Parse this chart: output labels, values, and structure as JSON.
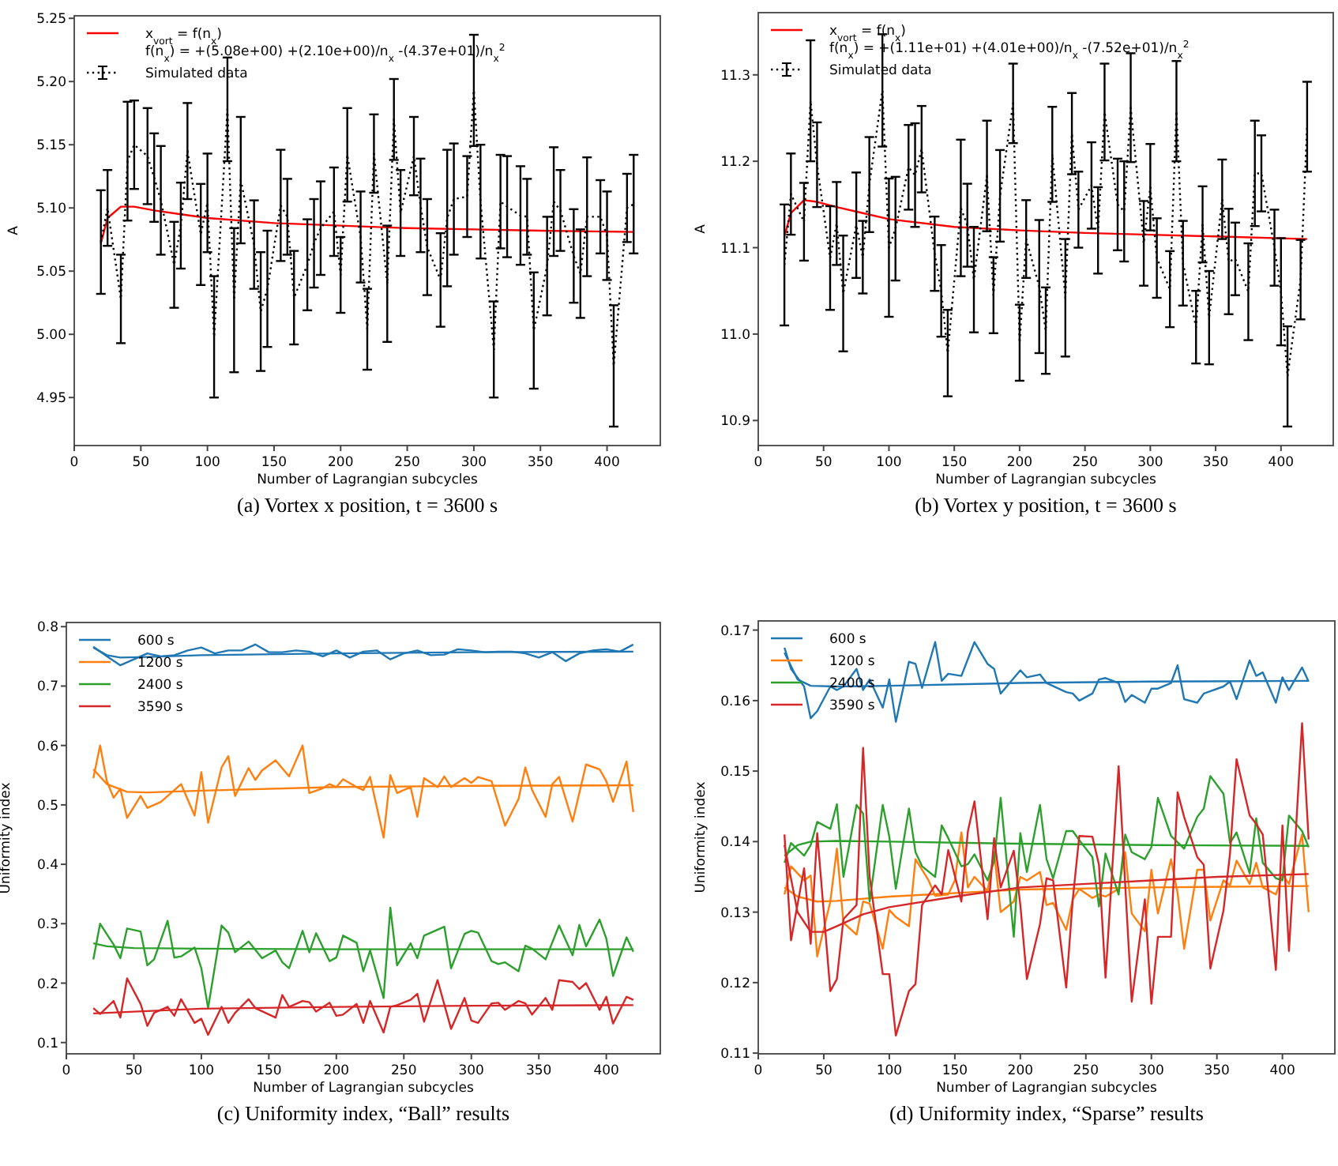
{
  "chart_data": [
    {
      "type": "line",
      "xlabel": "Number of Lagrangian subcycles",
      "ylabel": "A",
      "xlim": [
        0,
        440
      ],
      "ylim": [
        4.912,
        5.252
      ],
      "xticks": [
        0,
        50,
        100,
        150,
        200,
        250,
        300,
        350,
        400
      ],
      "yticks": [
        4.95,
        {
          "value": 5,
          "label": "5.00"
        },
        5.05,
        {
          "value": 5.1,
          "label": "5.10"
        },
        5.15,
        {
          "value": 5.2,
          "label": "5.20"
        },
        5.25
      ],
      "legend": "top left",
      "annotations": [
        "(a) Vortex x position, t = 3600 s"
      ],
      "series": [
        {
          "name": "x$_{vort}$ = f(n$_{x}$)\nf(n$_{x}$) = +(5.08e+00) +(2.10e+00)/n$_{x}$ -(4.37e+01)/n$_{x}$$^{2}$",
          "color": "#ff0000",
          "x": [
            20,
            25,
            35,
            45,
            60,
            80,
            100,
            150,
            200,
            250,
            300,
            350,
            420
          ],
          "values": [
            5.072,
            5.092,
            5.101,
            5.101,
            5.098,
            5.095,
            5.092,
            5.088,
            5.086,
            5.084,
            5.083,
            5.082,
            5.081
          ]
        },
        {
          "name": "Simulated data",
          "color": "#000000",
          "line_style": "dotted",
          "x": [
            20,
            25,
            35,
            40,
            45,
            55,
            60,
            65,
            75,
            80,
            85,
            95,
            100,
            105,
            115,
            120,
            125,
            135,
            140,
            145,
            155,
            160,
            165,
            175,
            180,
            185,
            195,
            200,
            205,
            215,
            220,
            225,
            235,
            240,
            245,
            255,
            260,
            265,
            275,
            280,
            285,
            295,
            300,
            305,
            315,
            320,
            325,
            335,
            340,
            345,
            355,
            360,
            365,
            375,
            380,
            385,
            395,
            400,
            405,
            415,
            420
          ],
          "values": [
            5.073,
            5.1,
            5.028,
            5.137,
            5.15,
            5.141,
            5.124,
            5.106,
            5.055,
            5.086,
            5.145,
            5.079,
            5.104,
            4.998,
            5.178,
            5.027,
            5.122,
            5.071,
            5.018,
            5.036,
            5.102,
            5.093,
            5.029,
            5.055,
            5.072,
            5.084,
            5.097,
            5.047,
            5.142,
            5.077,
            5.004,
            5.143,
            5.04,
            5.17,
            5.096,
            5.141,
            5.102,
            5.069,
            5.043,
            5.092,
            5.107,
            5.109,
            5.193,
            5.105,
            4.988,
            5.105,
            5.101,
            5.094,
            5.093,
            5.003,
            5.054,
            5.105,
            5.098,
            5.062,
            5.048,
            5.093,
            5.093,
            5.078,
            4.975,
            5.1,
            5.103
          ],
          "errors": [
            0.041,
            0.03,
            0.035,
            0.047,
            0.035,
            0.038,
            0.035,
            0.043,
            0.034,
            0.034,
            0.038,
            0.04,
            0.039,
            0.048,
            0.041,
            0.057,
            0.05,
            0.035,
            0.047,
            0.046,
            0.044,
            0.03,
            0.037,
            0.036,
            0.035,
            0.037,
            0.035,
            0.03,
            0.037,
            0.036,
            0.032,
            0.031,
            0.046,
            0.032,
            0.034,
            0.031,
            0.037,
            0.038,
            0.037,
            0.054,
            0.044,
            0.032,
            0.044,
            0.045,
            0.038,
            0.037,
            0.04,
            0.039,
            0.03,
            0.046,
            0.039,
            0.043,
            0.032,
            0.037,
            0.035,
            0.047,
            0.029,
            0.035,
            0.048,
            0.027,
            0.039
          ]
        }
      ]
    },
    {
      "type": "line",
      "xlabel": "Number of Lagrangian subcycles",
      "ylabel": "A",
      "xlim": [
        0,
        440
      ],
      "ylim": [
        10.871,
        11.372
      ],
      "xticks": [
        0,
        50,
        100,
        150,
        200,
        250,
        300,
        350,
        400
      ],
      "yticks": [
        10.9,
        {
          "value": 11,
          "label": "11.0"
        },
        11.1,
        11.2,
        11.3
      ],
      "legend": "top left",
      "annotations": [
        "(b) Vortex y position, t = 3600 s"
      ],
      "series": [
        {
          "name": "x$_{vort}$ = f(n$_{x}$)\nf(n$_{x}$) = +(1.11e+01) +(4.01e+00)/n$_{x}$ -(7.52e+01)/n$_{x}$$^{2}$",
          "color": "#ff0000",
          "x": [
            20,
            25,
            35,
            45,
            60,
            80,
            100,
            150,
            200,
            250,
            300,
            350,
            420
          ],
          "values": [
            11.113,
            11.14,
            11.155,
            11.153,
            11.147,
            11.14,
            11.133,
            11.124,
            11.12,
            11.117,
            11.115,
            11.113,
            11.11
          ]
        },
        {
          "name": "Simulated data",
          "color": "#000000",
          "line_style": "dotted",
          "x": [
            20,
            25,
            35,
            40,
            45,
            55,
            60,
            65,
            75,
            80,
            85,
            95,
            100,
            105,
            115,
            120,
            125,
            135,
            140,
            145,
            155,
            160,
            165,
            175,
            180,
            185,
            195,
            200,
            205,
            215,
            220,
            225,
            235,
            240,
            245,
            255,
            260,
            265,
            275,
            280,
            285,
            295,
            300,
            305,
            315,
            320,
            325,
            335,
            340,
            345,
            355,
            360,
            365,
            375,
            380,
            385,
            395,
            400,
            405,
            415,
            420
          ],
          "values": [
            11.08,
            11.162,
            11.13,
            11.27,
            11.196,
            11.088,
            11.128,
            11.047,
            11.126,
            11.089,
            11.173,
            11.282,
            11.1,
            11.122,
            11.193,
            11.184,
            11.214,
            11.093,
            11.05,
            10.978,
            11.146,
            11.126,
            11.063,
            11.183,
            11.045,
            11.16,
            11.267,
            10.99,
            11.11,
            11.055,
            11.004,
            11.208,
            11.042,
            11.232,
            11.144,
            11.172,
            11.12,
            11.257,
            11.15,
            11.142,
            11.262,
            11.105,
            11.17,
            11.088,
            11.052,
            11.258,
            11.082,
            11.008,
            11.127,
            11.019,
            11.156,
            11.084,
            11.087,
            11.049,
            11.186,
            11.186,
            11.1,
            11.049,
            10.951,
            11.063,
            11.24
          ],
          "errors": [
            0.07,
            0.047,
            0.045,
            0.07,
            0.049,
            0.06,
            0.048,
            0.067,
            0.061,
            0.042,
            0.055,
            0.065,
            0.08,
            0.06,
            0.049,
            0.06,
            0.05,
            0.043,
            0.053,
            0.05,
            0.079,
            0.048,
            0.061,
            0.064,
            0.044,
            0.053,
            0.046,
            0.044,
            0.045,
            0.077,
            0.05,
            0.055,
            0.068,
            0.047,
            0.044,
            0.05,
            0.05,
            0.056,
            0.053,
            0.058,
            0.063,
            0.049,
            0.05,
            0.046,
            0.044,
            0.058,
            0.049,
            0.042,
            0.044,
            0.054,
            0.046,
            0.061,
            0.042,
            0.056,
            0.061,
            0.044,
            0.044,
            0.062,
            0.058,
            0.046,
            0.052
          ]
        }
      ]
    },
    {
      "type": "line",
      "xlabel": "Number of Lagrangian subcycles",
      "ylabel": "Uniformity index",
      "xlim": [
        0,
        440
      ],
      "ylim": [
        0.081,
        0.807
      ],
      "xticks": [
        0,
        50,
        100,
        150,
        200,
        250,
        300,
        350,
        400
      ],
      "yticks": [
        0.1,
        0.2,
        0.3,
        0.4,
        0.5,
        0.6,
        0.7,
        0.8
      ],
      "legend": "top left",
      "annotations": [
        "(c) Uniformity index, “Ball” results"
      ],
      "series": [
        {
          "name": "600 s",
          "color": "#1f77b4",
          "x": [
            20,
            30,
            40,
            50,
            60,
            70,
            80,
            90,
            100,
            110,
            120,
            130,
            140,
            150,
            160,
            170,
            180,
            190,
            200,
            210,
            220,
            230,
            240,
            250,
            260,
            270,
            280,
            290,
            300,
            310,
            320,
            330,
            340,
            350,
            360,
            370,
            380,
            390,
            400,
            410,
            420
          ],
          "values": [
            0.766,
            0.75,
            0.735,
            0.745,
            0.755,
            0.75,
            0.752,
            0.76,
            0.765,
            0.755,
            0.76,
            0.76,
            0.77,
            0.757,
            0.757,
            0.76,
            0.758,
            0.75,
            0.76,
            0.748,
            0.758,
            0.76,
            0.745,
            0.755,
            0.76,
            0.752,
            0.753,
            0.762,
            0.76,
            0.757,
            0.758,
            0.758,
            0.755,
            0.748,
            0.757,
            0.742,
            0.755,
            0.76,
            0.762,
            0.758,
            0.77
          ]
        },
        {
          "color": "#1f77b4",
          "x": [
            20,
            30,
            40,
            60,
            100,
            200,
            300,
            420
          ],
          "values": [
            0.765,
            0.752,
            0.748,
            0.749,
            0.752,
            0.755,
            0.757,
            0.758
          ]
        },
        {
          "name": "1200 s",
          "color": "#ff7f0e",
          "x": [
            20,
            25,
            30,
            35,
            40,
            45,
            55,
            60,
            70,
            85,
            95,
            100,
            105,
            115,
            120,
            125,
            135,
            140,
            145,
            155,
            165,
            175,
            180,
            190,
            195,
            200,
            205,
            215,
            220,
            225,
            235,
            240,
            245,
            255,
            260,
            265,
            275,
            280,
            285,
            295,
            300,
            305,
            315,
            325,
            335,
            340,
            345,
            355,
            360,
            365,
            375,
            385,
            395,
            400,
            405,
            415,
            420
          ],
          "values": [
            0.545,
            0.6,
            0.54,
            0.512,
            0.527,
            0.478,
            0.515,
            0.495,
            0.505,
            0.535,
            0.482,
            0.555,
            0.47,
            0.563,
            0.582,
            0.515,
            0.562,
            0.542,
            0.558,
            0.575,
            0.548,
            0.6,
            0.52,
            0.528,
            0.535,
            0.53,
            0.543,
            0.53,
            0.525,
            0.547,
            0.445,
            0.55,
            0.52,
            0.53,
            0.48,
            0.545,
            0.53,
            0.548,
            0.53,
            0.545,
            0.537,
            0.547,
            0.54,
            0.465,
            0.51,
            0.563,
            0.525,
            0.48,
            0.535,
            0.547,
            0.472,
            0.568,
            0.56,
            0.54,
            0.505,
            0.573,
            0.488
          ]
        },
        {
          "color": "#ff7f0e",
          "x": [
            20,
            30,
            45,
            60,
            100,
            200,
            300,
            420
          ],
          "values": [
            0.56,
            0.535,
            0.522,
            0.521,
            0.524,
            0.53,
            0.532,
            0.533
          ]
        },
        {
          "name": "2400 s",
          "color": "#2ca02c",
          "x": [
            20,
            25,
            35,
            40,
            45,
            55,
            60,
            65,
            75,
            80,
            85,
            95,
            100,
            105,
            115,
            120,
            125,
            135,
            145,
            155,
            160,
            165,
            175,
            180,
            185,
            195,
            200,
            205,
            215,
            220,
            225,
            235,
            240,
            245,
            255,
            260,
            265,
            280,
            285,
            295,
            300,
            305,
            315,
            320,
            325,
            335,
            340,
            345,
            355,
            365,
            375,
            380,
            385,
            395,
            400,
            405,
            415,
            420
          ],
          "values": [
            0.24,
            0.3,
            0.265,
            0.242,
            0.292,
            0.287,
            0.23,
            0.24,
            0.305,
            0.243,
            0.245,
            0.26,
            0.225,
            0.158,
            0.297,
            0.285,
            0.252,
            0.27,
            0.242,
            0.255,
            0.235,
            0.225,
            0.288,
            0.252,
            0.284,
            0.237,
            0.243,
            0.28,
            0.268,
            0.22,
            0.255,
            0.175,
            0.327,
            0.23,
            0.267,
            0.242,
            0.28,
            0.295,
            0.225,
            0.283,
            0.288,
            0.285,
            0.237,
            0.232,
            0.235,
            0.22,
            0.263,
            0.258,
            0.24,
            0.297,
            0.247,
            0.298,
            0.262,
            0.307,
            0.275,
            0.212,
            0.277,
            0.253
          ]
        },
        {
          "color": "#2ca02c",
          "x": [
            20,
            30,
            50,
            100,
            200,
            300,
            420
          ],
          "values": [
            0.267,
            0.262,
            0.259,
            0.258,
            0.257,
            0.257,
            0.257
          ]
        },
        {
          "name": "3590 s",
          "color": "#d62728",
          "x": [
            20,
            25,
            35,
            40,
            45,
            55,
            60,
            65,
            75,
            80,
            85,
            95,
            100,
            105,
            115,
            120,
            125,
            135,
            140,
            155,
            160,
            165,
            175,
            180,
            185,
            195,
            200,
            205,
            215,
            220,
            225,
            235,
            240,
            245,
            255,
            260,
            265,
            275,
            285,
            295,
            300,
            305,
            315,
            320,
            325,
            335,
            340,
            345,
            355,
            360,
            365,
            375,
            380,
            385,
            395,
            400,
            405,
            415,
            420
          ],
          "values": [
            0.158,
            0.148,
            0.17,
            0.142,
            0.208,
            0.165,
            0.128,
            0.15,
            0.16,
            0.145,
            0.173,
            0.133,
            0.14,
            0.113,
            0.16,
            0.133,
            0.15,
            0.173,
            0.158,
            0.142,
            0.18,
            0.16,
            0.17,
            0.168,
            0.152,
            0.167,
            0.145,
            0.147,
            0.165,
            0.133,
            0.17,
            0.117,
            0.16,
            0.163,
            0.172,
            0.182,
            0.135,
            0.205,
            0.123,
            0.175,
            0.137,
            0.133,
            0.166,
            0.167,
            0.155,
            0.17,
            0.166,
            0.147,
            0.175,
            0.155,
            0.205,
            0.202,
            0.19,
            0.2,
            0.155,
            0.177,
            0.132,
            0.177,
            0.172
          ]
        },
        {
          "color": "#d62728",
          "x": [
            20,
            50,
            100,
            200,
            300,
            420
          ],
          "values": [
            0.149,
            0.152,
            0.157,
            0.16,
            0.162,
            0.163
          ]
        }
      ]
    },
    {
      "type": "line",
      "xlabel": "Number of Lagrangian subcycles",
      "ylabel": "Uniformity index",
      "xlim": [
        0,
        440
      ],
      "ylim": [
        0.1099,
        0.1713
      ],
      "xticks": [
        0,
        50,
        100,
        150,
        200,
        250,
        300,
        350,
        400
      ],
      "yticks": [
        0.11,
        0.12,
        0.13,
        0.14,
        0.15,
        0.16,
        0.17
      ],
      "legend": "top left",
      "annotations": [
        "(d) Uniformity index, “Sparse” results"
      ],
      "series": [
        {
          "name": "600 s",
          "color": "#1f77b4",
          "x": [
            20,
            25,
            35,
            40,
            45,
            55,
            60,
            65,
            75,
            80,
            85,
            95,
            100,
            105,
            115,
            120,
            125,
            135,
            140,
            145,
            155,
            165,
            175,
            180,
            185,
            200,
            205,
            215,
            220,
            235,
            240,
            245,
            255,
            260,
            265,
            275,
            280,
            285,
            295,
            300,
            305,
            315,
            320,
            325,
            335,
            340,
            355,
            360,
            365,
            375,
            380,
            385,
            395,
            400,
            405,
            415,
            420
          ],
          "values": [
            0.1675,
            0.1645,
            0.162,
            0.1575,
            0.1585,
            0.162,
            0.1615,
            0.162,
            0.1645,
            0.1615,
            0.163,
            0.159,
            0.163,
            0.157,
            0.1655,
            0.1652,
            0.1618,
            0.1683,
            0.1628,
            0.1638,
            0.1635,
            0.1683,
            0.1652,
            0.1645,
            0.161,
            0.1643,
            0.1633,
            0.1637,
            0.1625,
            0.1612,
            0.161,
            0.16,
            0.161,
            0.163,
            0.1632,
            0.1625,
            0.1598,
            0.1608,
            0.1597,
            0.1617,
            0.1617,
            0.1625,
            0.165,
            0.1602,
            0.1597,
            0.161,
            0.162,
            0.1627,
            0.1602,
            0.1657,
            0.1635,
            0.164,
            0.1597,
            0.1633,
            0.1615,
            0.1647,
            0.1627
          ]
        },
        {
          "color": "#1f77b4",
          "x": [
            20,
            30,
            40,
            60,
            100,
            200,
            300,
            420
          ],
          "values": [
            0.1668,
            0.163,
            0.1621,
            0.162,
            0.1621,
            0.1625,
            0.1627,
            0.1628
          ]
        },
        {
          "name": "1200 s",
          "color": "#ff7f0e",
          "x": [
            20,
            25,
            35,
            40,
            45,
            55,
            60,
            65,
            75,
            80,
            85,
            95,
            100,
            105,
            115,
            120,
            130,
            135,
            145,
            150,
            155,
            160,
            165,
            175,
            180,
            185,
            195,
            200,
            205,
            215,
            220,
            225,
            235,
            240,
            245,
            255,
            260,
            265,
            275,
            280,
            285,
            295,
            300,
            305,
            315,
            320,
            325,
            335,
            340,
            345,
            355,
            360,
            365,
            375,
            380,
            385,
            395,
            400,
            405,
            415,
            420
          ],
          "values": [
            0.1325,
            0.1365,
            0.1345,
            0.1352,
            0.1237,
            0.1315,
            0.139,
            0.1285,
            0.1268,
            0.1315,
            0.1312,
            0.1248,
            0.1303,
            0.1293,
            0.128,
            0.1375,
            0.1345,
            0.1323,
            0.1325,
            0.1345,
            0.1413,
            0.1335,
            0.135,
            0.133,
            0.1385,
            0.13,
            0.1315,
            0.135,
            0.1345,
            0.1357,
            0.131,
            0.1313,
            0.1275,
            0.1318,
            0.1333,
            0.132,
            0.1325,
            0.1322,
            0.1333,
            0.1385,
            0.1298,
            0.1273,
            0.136,
            0.1298,
            0.1375,
            0.1327,
            0.1248,
            0.136,
            0.136,
            0.1288,
            0.1345,
            0.1338,
            0.1373,
            0.134,
            0.137,
            0.1335,
            0.1325,
            0.1353,
            0.134,
            0.141,
            0.13
          ]
        },
        {
          "color": "#ff7f0e",
          "x": [
            20,
            30,
            45,
            60,
            100,
            200,
            300,
            420
          ],
          "values": [
            0.1335,
            0.1322,
            0.1315,
            0.1316,
            0.1322,
            0.1332,
            0.1335,
            0.1337
          ]
        },
        {
          "name": "2400 s",
          "color": "#2ca02c",
          "x": [
            20,
            25,
            35,
            40,
            45,
            55,
            60,
            65,
            75,
            80,
            85,
            95,
            100,
            105,
            115,
            120,
            125,
            135,
            140,
            145,
            155,
            160,
            165,
            175,
            180,
            185,
            195,
            200,
            205,
            215,
            220,
            225,
            235,
            240,
            245,
            255,
            260,
            265,
            275,
            280,
            285,
            295,
            300,
            305,
            315,
            325,
            335,
            340,
            345,
            355,
            360,
            365,
            375,
            380,
            385,
            395,
            400,
            405,
            415,
            420
          ],
          "values": [
            0.137,
            0.1398,
            0.138,
            0.1395,
            0.1428,
            0.1418,
            0.1453,
            0.135,
            0.1452,
            0.144,
            0.1315,
            0.1452,
            0.1407,
            0.1333,
            0.1447,
            0.1385,
            0.1365,
            0.135,
            0.1423,
            0.1405,
            0.1365,
            0.1368,
            0.1382,
            0.1345,
            0.1372,
            0.1462,
            0.1265,
            0.1412,
            0.1357,
            0.1452,
            0.1375,
            0.1348,
            0.1415,
            0.1415,
            0.1402,
            0.1378,
            0.1308,
            0.1383,
            0.1325,
            0.141,
            0.1385,
            0.1375,
            0.1392,
            0.1462,
            0.1408,
            0.139,
            0.1435,
            0.1447,
            0.1493,
            0.1468,
            0.1398,
            0.1413,
            0.1355,
            0.1433,
            0.137,
            0.1348,
            0.1345,
            0.1437,
            0.1415,
            0.1392
          ]
        },
        {
          "color": "#2ca02c",
          "x": [
            20,
            30,
            40,
            60,
            100,
            200,
            300,
            420
          ],
          "values": [
            0.138,
            0.1395,
            0.14,
            0.1401,
            0.14,
            0.1397,
            0.1395,
            0.1394
          ]
        },
        {
          "name": "3590 s",
          "color": "#d62728",
          "x": [
            20,
            25,
            35,
            40,
            45,
            55,
            60,
            65,
            75,
            80,
            85,
            95,
            100,
            105,
            115,
            120,
            125,
            135,
            140,
            145,
            155,
            160,
            165,
            175,
            180,
            185,
            195,
            200,
            205,
            215,
            220,
            225,
            235,
            240,
            245,
            255,
            260,
            265,
            275,
            285,
            295,
            300,
            305,
            315,
            320,
            325,
            335,
            340,
            345,
            355,
            360,
            365,
            375,
            380,
            385,
            395,
            400,
            405,
            415,
            420
          ],
          "values": [
            0.141,
            0.126,
            0.1362,
            0.1255,
            0.1412,
            0.1188,
            0.1205,
            0.129,
            0.131,
            0.1533,
            0.135,
            0.1212,
            0.1212,
            0.1125,
            0.1188,
            0.1198,
            0.131,
            0.1338,
            0.1325,
            0.1388,
            0.1315,
            0.1415,
            0.1457,
            0.129,
            0.1405,
            0.1335,
            0.1387,
            0.131,
            0.1205,
            0.1283,
            0.1348,
            0.1345,
            0.1193,
            0.1318,
            0.1408,
            0.1407,
            0.1367,
            0.1207,
            0.1507,
            0.1173,
            0.1318,
            0.117,
            0.1265,
            0.1265,
            0.147,
            0.1435,
            0.1378,
            0.1367,
            0.122,
            0.1302,
            0.1383,
            0.1517,
            0.1437,
            0.1425,
            0.141,
            0.1218,
            0.1423,
            0.1245,
            0.1568,
            0.1403
          ]
        },
        {
          "color": "#d62728",
          "x": [
            20,
            30,
            40,
            50,
            60,
            80,
            100,
            150,
            200,
            250,
            300,
            350,
            420
          ],
          "values": [
            0.1395,
            0.13,
            0.1272,
            0.1272,
            0.128,
            0.1297,
            0.1307,
            0.1322,
            0.1335,
            0.134,
            0.1345,
            0.135,
            0.1354
          ]
        }
      ]
    }
  ]
}
